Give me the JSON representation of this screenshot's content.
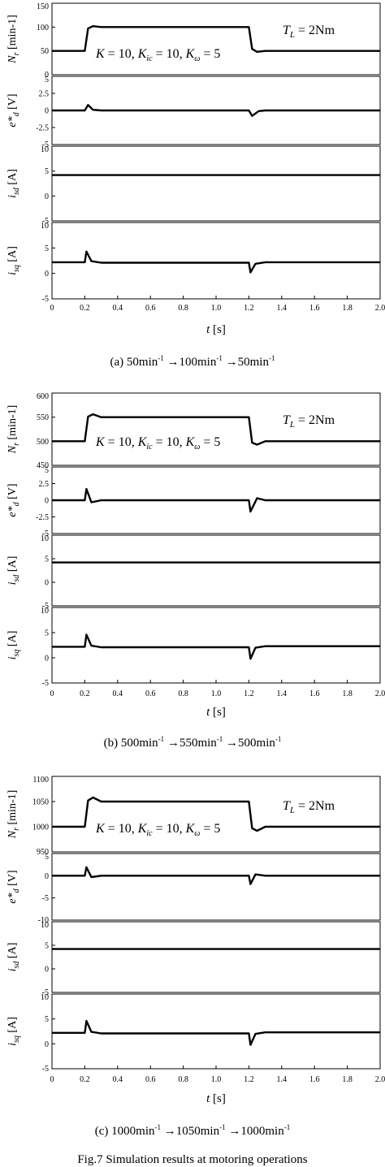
{
  "figure_caption": "Fig.7  Simulation results at motoring operations",
  "xaxis": {
    "ticks": [
      "0",
      "0.2",
      "0.4",
      "0.6",
      "0.8",
      "1.0",
      "1.2",
      "1.4",
      "1.6",
      "1.8",
      "2.0"
    ],
    "label_symbol": "t",
    "label_unit": "[s]"
  },
  "chart_data": [
    {
      "type": "line",
      "caption": {
        "prefix": "(a)",
        "from": "50",
        "mid": "100",
        "to": "50",
        "unit": "min",
        "exp": "-1"
      },
      "annotations": {
        "load": "T_L = 2Nm",
        "gains": "K = 10, K_ic = 10, K_ω = 5"
      },
      "panels": [
        {
          "ylabel": {
            "sym": "N",
            "sub": "r",
            "unit": "[min-1]"
          },
          "ylim": [
            0,
            150
          ],
          "ticks": [
            "0",
            "50",
            "100",
            "150"
          ],
          "x": [
            0,
            0.2,
            0.22,
            0.25,
            0.3,
            1.2,
            1.22,
            1.25,
            1.3,
            2.0
          ],
          "y": [
            50,
            50,
            97,
            102,
            100,
            100,
            54,
            48,
            50,
            50
          ]
        },
        {
          "ylabel": {
            "sym": "e*",
            "sub": "d",
            "unit": "[V]"
          },
          "ylim": [
            -5,
            5
          ],
          "ticks": [
            "-5",
            "-2.5",
            "0",
            "2.5",
            "5"
          ],
          "x": [
            0,
            0.2,
            0.22,
            0.25,
            0.3,
            1.2,
            1.22,
            1.26,
            1.3,
            2.0
          ],
          "y": [
            0,
            0,
            0.8,
            0.1,
            0,
            0,
            -0.8,
            -0.1,
            0,
            0
          ]
        },
        {
          "ylabel": {
            "sym": "i",
            "sub": "sd",
            "unit": "[A]"
          },
          "ylim": [
            -5,
            10
          ],
          "ticks": [
            "-5",
            "0",
            "5",
            "10"
          ],
          "x": [
            0,
            2.0
          ],
          "y": [
            4.2,
            4.2
          ]
        },
        {
          "ylabel": {
            "sym": "i",
            "sub": "sq",
            "unit": "[A]"
          },
          "ylim": [
            -5,
            10
          ],
          "ticks": [
            "-5",
            "0",
            "5",
            "10"
          ],
          "x": [
            0,
            0.2,
            0.21,
            0.24,
            0.3,
            1.2,
            1.21,
            1.24,
            1.3,
            2.0
          ],
          "y": [
            2.2,
            2.2,
            4.3,
            2.4,
            2.1,
            2.1,
            0.2,
            1.9,
            2.2,
            2.2
          ]
        }
      ]
    },
    {
      "type": "line",
      "caption": {
        "prefix": "(b)",
        "from": "500",
        "mid": "550",
        "to": "500",
        "unit": "min",
        "exp": "-1"
      },
      "annotations": {
        "load": "T_L = 2Nm",
        "gains": "K = 10, K_ic = 10, K_ω = 5"
      },
      "panels": [
        {
          "ylabel": {
            "sym": "N",
            "sub": "r",
            "unit": "[min-1]"
          },
          "ylim": [
            450,
            600
          ],
          "ticks": [
            "450",
            "500",
            "550",
            "600"
          ],
          "x": [
            0,
            0.2,
            0.22,
            0.25,
            0.3,
            1.2,
            1.22,
            1.25,
            1.3,
            2.0
          ],
          "y": [
            500,
            500,
            551,
            556,
            550,
            550,
            497,
            493,
            500,
            500
          ]
        },
        {
          "ylabel": {
            "sym": "e*",
            "sub": "d",
            "unit": "[V]"
          },
          "ylim": [
            -5,
            5
          ],
          "ticks": [
            "-5",
            "-2.5",
            "0",
            "2.5",
            "5"
          ],
          "x": [
            0,
            0.2,
            0.21,
            0.24,
            0.3,
            1.2,
            1.21,
            1.25,
            1.3,
            2.0
          ],
          "y": [
            0,
            0,
            1.7,
            -0.3,
            0,
            0,
            -1.7,
            0.3,
            0,
            0
          ]
        },
        {
          "ylabel": {
            "sym": "i",
            "sub": "sd",
            "unit": "[A]"
          },
          "ylim": [
            -5,
            10
          ],
          "ticks": [
            "-5",
            "0",
            "5",
            "10"
          ],
          "x": [
            0,
            2.0
          ],
          "y": [
            4.2,
            4.2
          ]
        },
        {
          "ylabel": {
            "sym": "i",
            "sub": "sq",
            "unit": "[A]"
          },
          "ylim": [
            -5,
            10
          ],
          "ticks": [
            "-5",
            "0",
            "5",
            "10"
          ],
          "x": [
            0,
            0.2,
            0.21,
            0.24,
            0.3,
            1.2,
            1.21,
            1.24,
            1.3,
            2.0
          ],
          "y": [
            2.2,
            2.2,
            4.6,
            2.4,
            2.1,
            2.1,
            -0.2,
            2.0,
            2.3,
            2.3
          ]
        }
      ]
    },
    {
      "type": "line",
      "caption": {
        "prefix": "(c)",
        "from": "1000",
        "mid": "1050",
        "to": "1000",
        "unit": "min",
        "exp": "-1"
      },
      "annotations": {
        "load": "T_L = 2Nm",
        "gains": "K = 10, K_ic = 10, K_ω = 5"
      },
      "panels": [
        {
          "ylabel": {
            "sym": "N",
            "sub": "r",
            "unit": "[min-1]"
          },
          "ylim": [
            950,
            1100
          ],
          "ticks": [
            "950",
            "1000",
            "1050",
            "1100"
          ],
          "x": [
            0,
            0.2,
            0.22,
            0.25,
            0.3,
            1.2,
            1.22,
            1.25,
            1.3,
            2.0
          ],
          "y": [
            1000,
            1000,
            1052,
            1058,
            1050,
            1050,
            997,
            992,
            1000,
            1000
          ]
        },
        {
          "ylabel": {
            "sym": "e*",
            "sub": "d",
            "unit": "[V]"
          },
          "ylim": [
            -10,
            5
          ],
          "ticks": [
            "-10",
            "-5",
            "0",
            "5"
          ],
          "x": [
            0,
            0.2,
            0.21,
            0.24,
            0.3,
            1.2,
            1.21,
            1.24,
            1.3,
            2.0
          ],
          "y": [
            0,
            0,
            1.9,
            -0.3,
            0,
            0,
            -1.9,
            0.3,
            0,
            0
          ]
        },
        {
          "ylabel": {
            "sym": "i",
            "sub": "sd",
            "unit": "[A]"
          },
          "ylim": [
            -5,
            10
          ],
          "ticks": [
            "-5",
            "0",
            "5",
            "10"
          ],
          "x": [
            0,
            2.0
          ],
          "y": [
            4.2,
            4.2
          ]
        },
        {
          "ylabel": {
            "sym": "i",
            "sub": "sq",
            "unit": "[A]"
          },
          "ylim": [
            -5,
            10
          ],
          "ticks": [
            "-5",
            "0",
            "5",
            "10"
          ],
          "x": [
            0,
            0.2,
            0.21,
            0.24,
            0.3,
            1.2,
            1.21,
            1.24,
            1.3,
            2.0
          ],
          "y": [
            2.2,
            2.2,
            4.6,
            2.4,
            2.1,
            2.1,
            -0.2,
            2.0,
            2.3,
            2.3
          ]
        }
      ]
    }
  ]
}
